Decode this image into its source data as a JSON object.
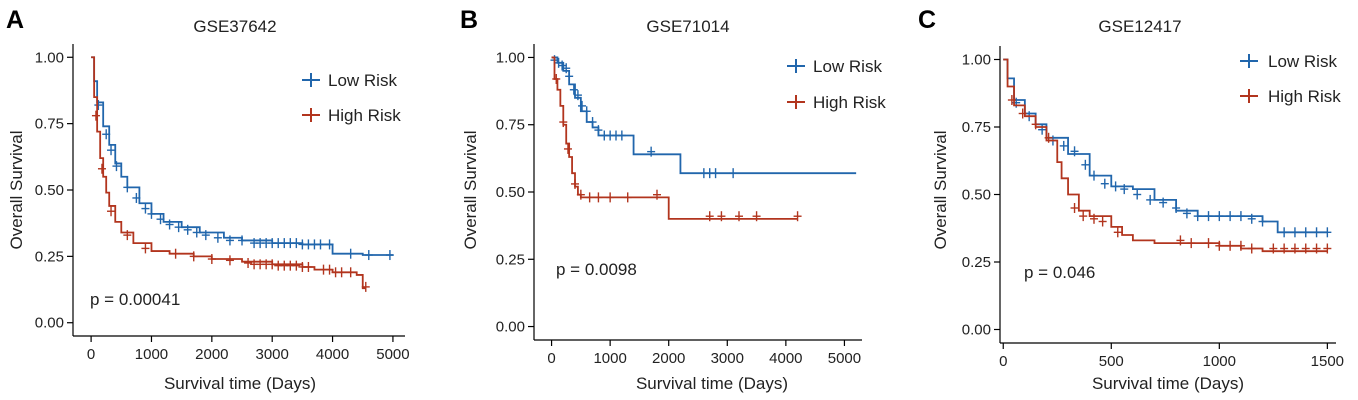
{
  "figure": {
    "colors": {
      "low": "#2166AC",
      "high": "#B2351E"
    },
    "series_names": [
      "Low Risk",
      "High Risk"
    ]
  },
  "chart_data": [
    {
      "type": "line",
      "panel": "A",
      "title": "GSE37642",
      "xlabel": "Survival time (Days)",
      "ylabel": "Overall Survival",
      "xlim": [
        -300,
        5200
      ],
      "ylim": [
        -0.05,
        1.05
      ],
      "xticks": [
        0,
        1000,
        2000,
        3000,
        4000,
        5000
      ],
      "xtick_labels": [
        "0",
        "1000",
        "2000",
        "3000",
        "4000",
        "5000"
      ],
      "yticks": [
        0,
        0.25,
        0.5,
        0.75,
        1.0
      ],
      "ytick_labels": [
        "0.00",
        "0.25",
        "0.50",
        "0.75",
        "1.00"
      ],
      "pvalue": "p = 0.00041",
      "legend": [
        "Low Risk",
        "High Risk"
      ],
      "series": [
        {
          "name": "Low Risk",
          "x": [
            0,
            50,
            100,
            200,
            300,
            400,
            500,
            600,
            800,
            1000,
            1200,
            1500,
            1800,
            2200,
            2500,
            3000,
            3500,
            4000,
            4500,
            5000
          ],
          "y": [
            1.0,
            0.91,
            0.83,
            0.74,
            0.67,
            0.6,
            0.55,
            0.51,
            0.45,
            0.41,
            0.38,
            0.36,
            0.34,
            0.32,
            0.31,
            0.3,
            0.295,
            0.26,
            0.255,
            0.255
          ],
          "censor_x": [
            120,
            250,
            330,
            420,
            600,
            750,
            900,
            1000,
            1150,
            1300,
            1450,
            1600,
            1750,
            1900,
            2100,
            2300,
            2500,
            2700,
            2800,
            2900,
            3000,
            3100,
            3200,
            3300,
            3400,
            3500,
            3600,
            3700,
            3800,
            3950,
            4300,
            4600,
            4950
          ],
          "censor_y": [
            0.82,
            0.71,
            0.65,
            0.59,
            0.51,
            0.47,
            0.43,
            0.41,
            0.39,
            0.37,
            0.36,
            0.35,
            0.34,
            0.33,
            0.32,
            0.31,
            0.31,
            0.3,
            0.3,
            0.3,
            0.3,
            0.3,
            0.3,
            0.3,
            0.3,
            0.295,
            0.295,
            0.295,
            0.295,
            0.295,
            0.26,
            0.255,
            0.255
          ]
        },
        {
          "name": "High Risk",
          "x": [
            0,
            50,
            100,
            150,
            200,
            250,
            300,
            400,
            500,
            700,
            1000,
            1300,
            1700,
            2000,
            2500,
            3000,
            3500,
            3700,
            4000,
            4400,
            4500,
            4550
          ],
          "y": [
            1.0,
            0.85,
            0.72,
            0.62,
            0.55,
            0.49,
            0.44,
            0.38,
            0.34,
            0.3,
            0.27,
            0.26,
            0.25,
            0.24,
            0.23,
            0.22,
            0.21,
            0.2,
            0.19,
            0.18,
            0.13,
            0.13
          ],
          "censor_x": [
            80,
            180,
            330,
            600,
            900,
            1400,
            1700,
            2000,
            2300,
            2600,
            2700,
            2800,
            2900,
            3000,
            3100,
            3200,
            3300,
            3400,
            3500,
            3600,
            3850,
            3950,
            4050,
            4150,
            4300,
            4550
          ],
          "censor_y": [
            0.78,
            0.58,
            0.42,
            0.33,
            0.28,
            0.26,
            0.25,
            0.24,
            0.235,
            0.225,
            0.22,
            0.22,
            0.22,
            0.22,
            0.215,
            0.215,
            0.215,
            0.215,
            0.21,
            0.21,
            0.2,
            0.2,
            0.19,
            0.19,
            0.19,
            0.135
          ]
        }
      ]
    },
    {
      "type": "line",
      "panel": "B",
      "title": "GSE71014",
      "xlabel": "Survival time (Days)",
      "ylabel": "Overall Survival",
      "xlim": [
        -300,
        5300
      ],
      "ylim": [
        -0.05,
        1.05
      ],
      "xticks": [
        0,
        1000,
        2000,
        3000,
        4000,
        5000
      ],
      "xtick_labels": [
        "0",
        "1000",
        "2000",
        "3000",
        "4000",
        "5000"
      ],
      "yticks": [
        0,
        0.25,
        0.5,
        0.75,
        1.0
      ],
      "ytick_labels": [
        "0.00",
        "0.25",
        "0.50",
        "0.75",
        "1.00"
      ],
      "pvalue": "p = 0.0098",
      "legend": [
        "Low Risk",
        "High Risk"
      ],
      "series": [
        {
          "name": "Low Risk",
          "x": [
            0,
            100,
            200,
            300,
            400,
            500,
            600,
            700,
            800,
            1000,
            1400,
            1500,
            2200,
            2300,
            5200
          ],
          "y": [
            1.0,
            0.98,
            0.95,
            0.9,
            0.85,
            0.8,
            0.76,
            0.74,
            0.71,
            0.71,
            0.64,
            0.64,
            0.57,
            0.57,
            0.57
          ],
          "censor_x": [
            50,
            120,
            180,
            250,
            300,
            380,
            450,
            520,
            600,
            700,
            800,
            900,
            1000,
            1100,
            1200,
            1700,
            2600,
            2700,
            2800,
            3100
          ],
          "censor_y": [
            0.99,
            0.98,
            0.97,
            0.96,
            0.93,
            0.88,
            0.86,
            0.82,
            0.8,
            0.76,
            0.73,
            0.71,
            0.71,
            0.71,
            0.71,
            0.65,
            0.57,
            0.57,
            0.57,
            0.57
          ]
        },
        {
          "name": "High Risk",
          "x": [
            0,
            50,
            100,
            150,
            200,
            250,
            300,
            350,
            400,
            450,
            500,
            1900,
            2000,
            4200
          ],
          "y": [
            1.0,
            0.92,
            0.88,
            0.82,
            0.75,
            0.68,
            0.63,
            0.57,
            0.52,
            0.49,
            0.48,
            0.48,
            0.4,
            0.4
          ],
          "censor_x": [
            80,
            200,
            280,
            400,
            500,
            650,
            800,
            1000,
            1300,
            1800,
            2700,
            2900,
            3200,
            3500,
            4200
          ],
          "censor_y": [
            0.92,
            0.76,
            0.66,
            0.53,
            0.49,
            0.48,
            0.48,
            0.48,
            0.48,
            0.49,
            0.41,
            0.41,
            0.41,
            0.41,
            0.41
          ]
        }
      ]
    },
    {
      "type": "line",
      "panel": "C",
      "title": "GSE12417",
      "xlabel": "Survival time (Days)",
      "ylabel": "Overall Survival",
      "xlim": [
        -15,
        1540
      ],
      "ylim": [
        -0.05,
        1.05
      ],
      "xticks": [
        0,
        500,
        1000,
        1500
      ],
      "xtick_labels": [
        "0",
        "500",
        "1000",
        "1500"
      ],
      "yticks": [
        0,
        0.25,
        0.5,
        0.75,
        1.0
      ],
      "ytick_labels": [
        "0.00",
        "0.25",
        "0.50",
        "0.75",
        "1.00"
      ],
      "pvalue": "p = 0.046",
      "legend": [
        "Low Risk",
        "High Risk"
      ],
      "series": [
        {
          "name": "Low Risk",
          "x": [
            0,
            20,
            50,
            100,
            150,
            200,
            300,
            400,
            500,
            600,
            700,
            800,
            900,
            1000,
            1100,
            1200,
            1270,
            1300,
            1500
          ],
          "y": [
            1.0,
            0.93,
            0.85,
            0.8,
            0.76,
            0.71,
            0.65,
            0.57,
            0.53,
            0.52,
            0.48,
            0.44,
            0.42,
            0.42,
            0.42,
            0.4,
            0.36,
            0.36,
            0.36
          ],
          "censor_x": [
            60,
            120,
            180,
            230,
            280,
            330,
            380,
            420,
            470,
            520,
            560,
            620,
            680,
            740,
            800,
            850,
            900,
            950,
            1000,
            1050,
            1100,
            1150,
            1200,
            1300,
            1350,
            1400,
            1450,
            1500
          ],
          "censor_y": [
            0.84,
            0.79,
            0.74,
            0.7,
            0.68,
            0.66,
            0.61,
            0.57,
            0.54,
            0.53,
            0.52,
            0.5,
            0.48,
            0.47,
            0.45,
            0.43,
            0.42,
            0.42,
            0.42,
            0.42,
            0.42,
            0.41,
            0.4,
            0.36,
            0.36,
            0.36,
            0.36,
            0.36
          ]
        },
        {
          "name": "High Risk",
          "x": [
            0,
            20,
            50,
            100,
            150,
            200,
            250,
            270,
            300,
            350,
            400,
            500,
            550,
            600,
            700,
            800,
            900,
            1000,
            1100,
            1200,
            1300,
            1500
          ],
          "y": [
            1.0,
            0.9,
            0.83,
            0.79,
            0.75,
            0.7,
            0.62,
            0.56,
            0.5,
            0.44,
            0.42,
            0.38,
            0.35,
            0.33,
            0.32,
            0.32,
            0.32,
            0.31,
            0.3,
            0.29,
            0.29,
            0.29
          ],
          "censor_x": [
            40,
            90,
            150,
            210,
            330,
            370,
            420,
            460,
            530,
            820,
            870,
            950,
            1000,
            1050,
            1100,
            1150,
            1250,
            1300,
            1350,
            1400,
            1450,
            1500
          ],
          "censor_y": [
            0.85,
            0.8,
            0.76,
            0.71,
            0.45,
            0.42,
            0.41,
            0.4,
            0.36,
            0.33,
            0.32,
            0.32,
            0.31,
            0.31,
            0.31,
            0.3,
            0.3,
            0.3,
            0.3,
            0.3,
            0.3,
            0.3
          ]
        }
      ]
    }
  ]
}
